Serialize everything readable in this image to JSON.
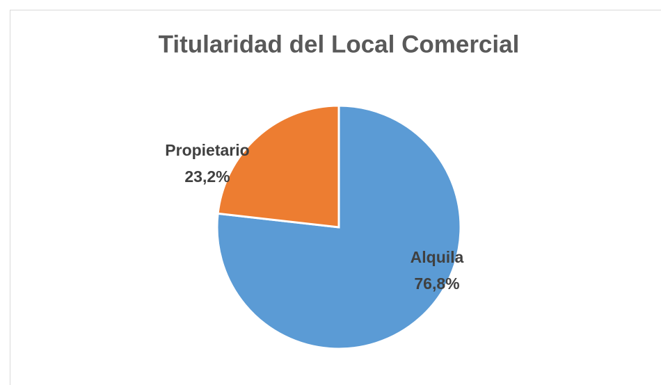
{
  "chart_data": {
    "type": "pie",
    "title": "Titularidad del Local Comercial",
    "categories": [
      "Alquila",
      "Propietario"
    ],
    "values": [
      76.8,
      23.2
    ],
    "value_labels": [
      "76,8%",
      "23,2%"
    ],
    "colors": [
      "#5b9bd5",
      "#ed7d31"
    ]
  }
}
